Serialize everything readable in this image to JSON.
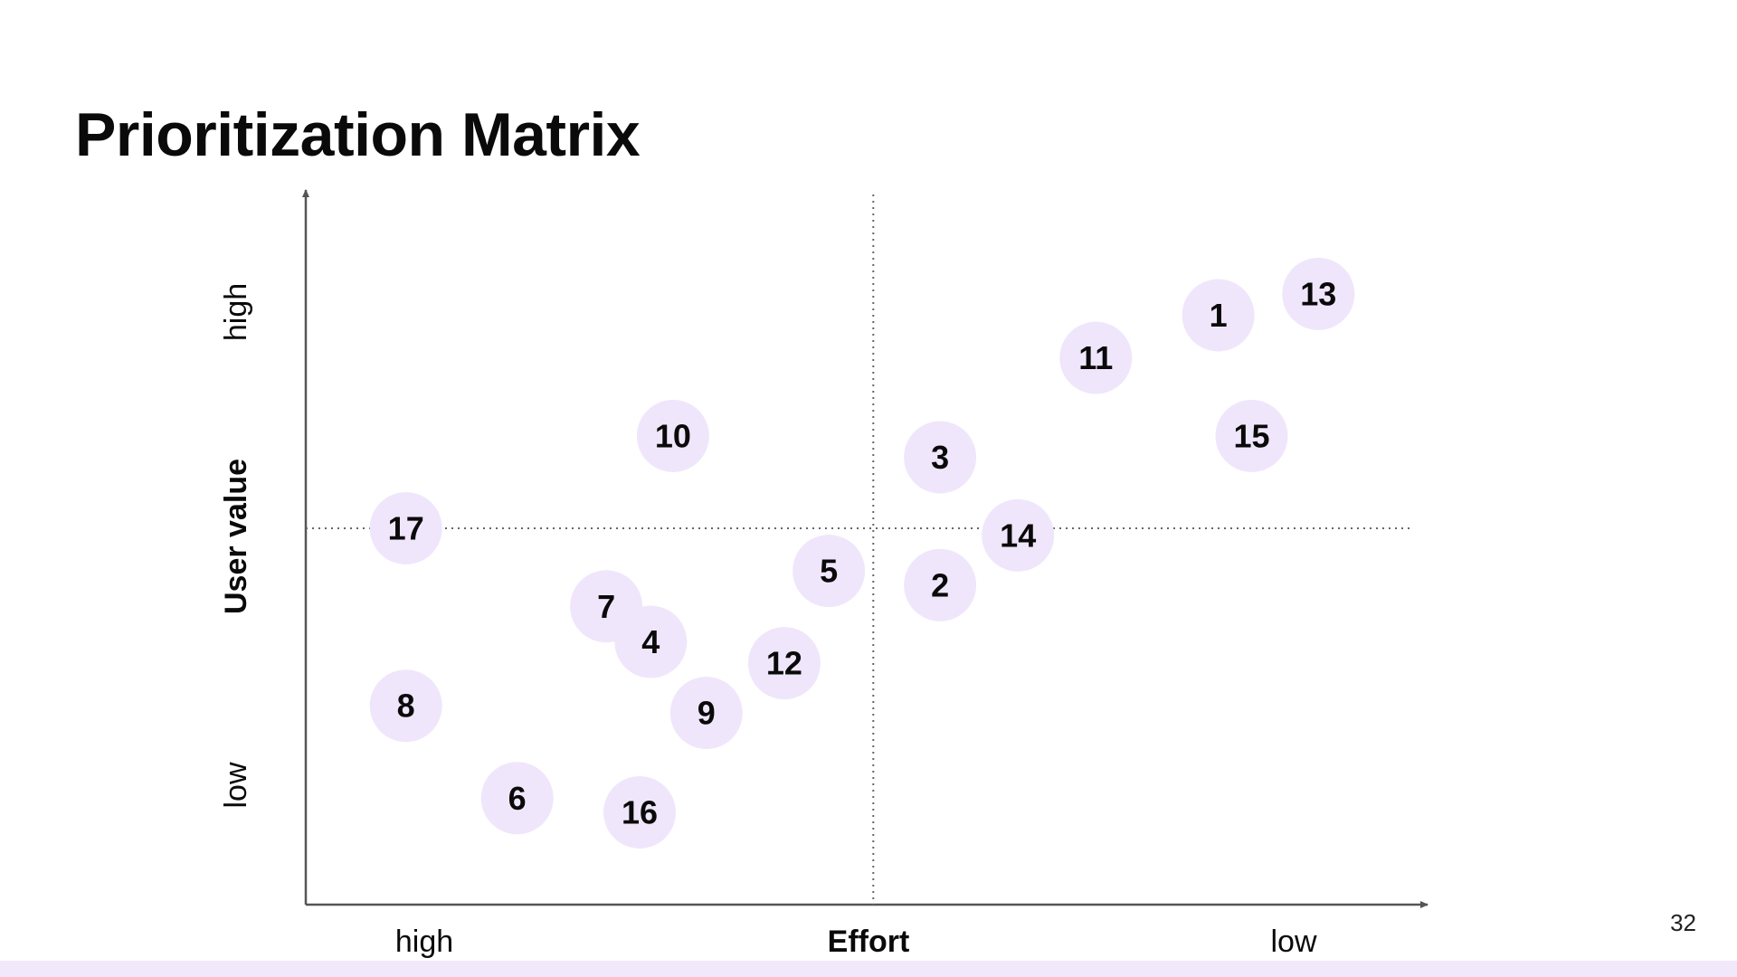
{
  "slide": {
    "title": "Prioritization Matrix",
    "page_number": "32"
  },
  "colors": {
    "bubble": "#f0e6fb",
    "axis": "#555555",
    "divider": "#666666",
    "text": "#0a0a0a",
    "bottom_bar": "#f1e8fc"
  },
  "chart_data": {
    "type": "scatter",
    "title": "Prioritization Matrix",
    "xlabel": "Effort",
    "ylabel": "User value",
    "x_tick_labels": {
      "left": "high",
      "right": "low"
    },
    "y_tick_labels": {
      "top": "high",
      "bottom": "low"
    },
    "xlim": [
      0,
      100
    ],
    "ylim": [
      0,
      100
    ],
    "dividers": {
      "x": 51,
      "y": 53
    },
    "grid": false,
    "legend": "none",
    "points": [
      {
        "label": "1",
        "x": 82,
        "y": 83
      },
      {
        "label": "2",
        "x": 57,
        "y": 45
      },
      {
        "label": "3",
        "x": 57,
        "y": 63
      },
      {
        "label": "4",
        "x": 31,
        "y": 37
      },
      {
        "label": "5",
        "x": 47,
        "y": 47
      },
      {
        "label": "6",
        "x": 19,
        "y": 15
      },
      {
        "label": "7",
        "x": 27,
        "y": 42
      },
      {
        "label": "8",
        "x": 9,
        "y": 28
      },
      {
        "label": "9",
        "x": 36,
        "y": 27
      },
      {
        "label": "10",
        "x": 33,
        "y": 66
      },
      {
        "label": "11",
        "x": 71,
        "y": 77
      },
      {
        "label": "12",
        "x": 43,
        "y": 34
      },
      {
        "label": "13",
        "x": 91,
        "y": 86
      },
      {
        "label": "14",
        "x": 64,
        "y": 52
      },
      {
        "label": "15",
        "x": 85,
        "y": 66
      },
      {
        "label": "16",
        "x": 30,
        "y": 13
      },
      {
        "label": "17",
        "x": 9,
        "y": 53
      }
    ]
  }
}
